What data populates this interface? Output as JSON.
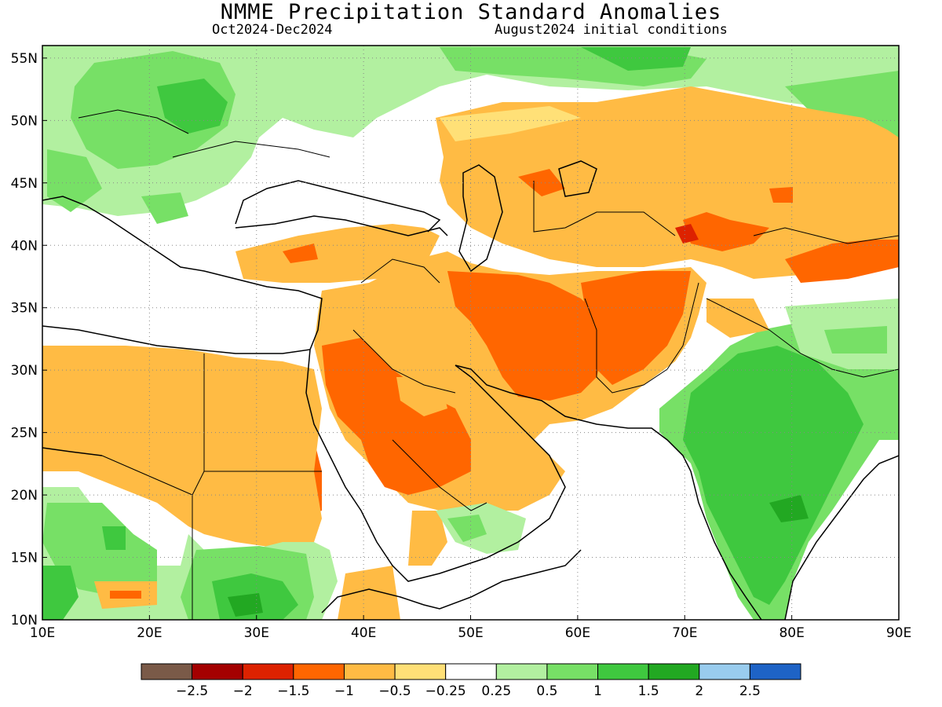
{
  "header": {
    "title": "NMME Precipitation Standard Anomalies",
    "period": "Oct2024-Dec2024",
    "initial_conditions": "August2024 initial conditions"
  },
  "map": {
    "lat_labels": [
      "55N",
      "50N",
      "45N",
      "40N",
      "35N",
      "30N",
      "25N",
      "20N",
      "15N",
      "10N"
    ],
    "lon_labels": [
      "10E",
      "20E",
      "30E",
      "40E",
      "50E",
      "60E",
      "70E",
      "80E",
      "90E"
    ],
    "lat_range": [
      10,
      56
    ],
    "lon_range": [
      10,
      90
    ]
  },
  "legend": {
    "colors": [
      "#7a5a48",
      "#a40000",
      "#dd2200",
      "#ff6600",
      "#ffbb44",
      "#ffe077",
      "#ffffff",
      "#b2f0a0",
      "#77e066",
      "#3fc83f",
      "#22a822",
      "#99ccee",
      "#1e63c6"
    ],
    "labels": [
      "-2.5",
      "-2",
      "-1.5",
      "-1",
      "-0.5",
      "-0.25",
      "0.25",
      "0.5",
      "1",
      "1.5",
      "2",
      "2.5"
    ]
  }
}
